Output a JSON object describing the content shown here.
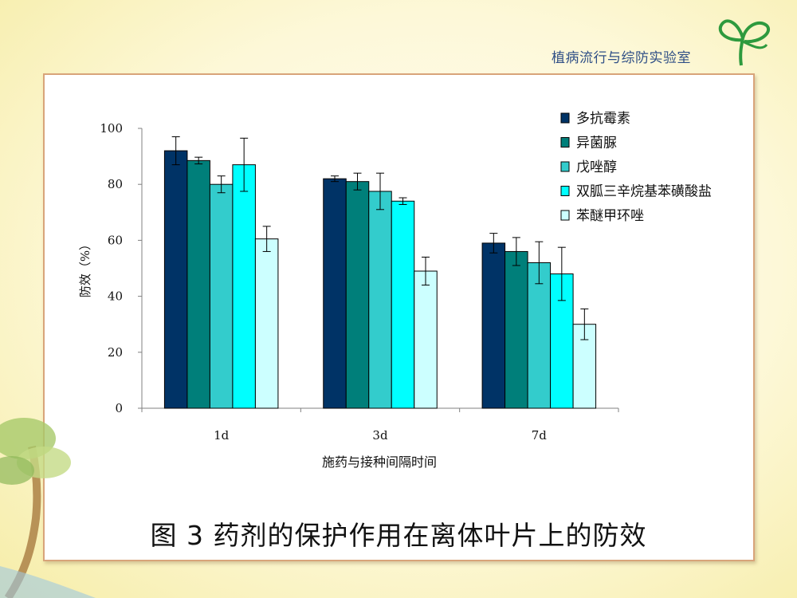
{
  "header": {
    "lab_name": "植病流行与综防实验室"
  },
  "caption": "图 3  药剂的保护作用在离体叶片上的防效",
  "colors": {
    "series": [
      "#003366",
      "#007f7a",
      "#33cccc",
      "#00ffff",
      "#ccffff"
    ],
    "frame": "#d8a47a",
    "logo": "#2e9a3e"
  },
  "chart_data": {
    "type": "bar",
    "title": "",
    "xlabel": "施药与接种间隔时间",
    "ylabel": "防效（%）",
    "ylim": [
      0,
      100
    ],
    "yticks": [
      0,
      20,
      40,
      60,
      80,
      100
    ],
    "categories": [
      "1d",
      "3d",
      "7d"
    ],
    "legend_position": "top-right",
    "grid": false,
    "series": [
      {
        "name": "多抗霉素",
        "values": [
          92,
          82,
          59
        ],
        "errors": [
          5,
          1,
          3.5
        ]
      },
      {
        "name": "异菌脲",
        "values": [
          88.5,
          81,
          56
        ],
        "errors": [
          1.2,
          3,
          5
        ]
      },
      {
        "name": "戊唑醇",
        "values": [
          80,
          77.5,
          52
        ],
        "errors": [
          3,
          6.5,
          7.5
        ]
      },
      {
        "name": "双胍三辛烷基苯磺酸盐",
        "values": [
          87,
          74,
          48
        ],
        "errors": [
          9.5,
          1.2,
          9.5
        ]
      },
      {
        "name": "苯醚甲环唑",
        "values": [
          60.5,
          49,
          30
        ],
        "errors": [
          4.5,
          5,
          5.5
        ]
      }
    ]
  }
}
